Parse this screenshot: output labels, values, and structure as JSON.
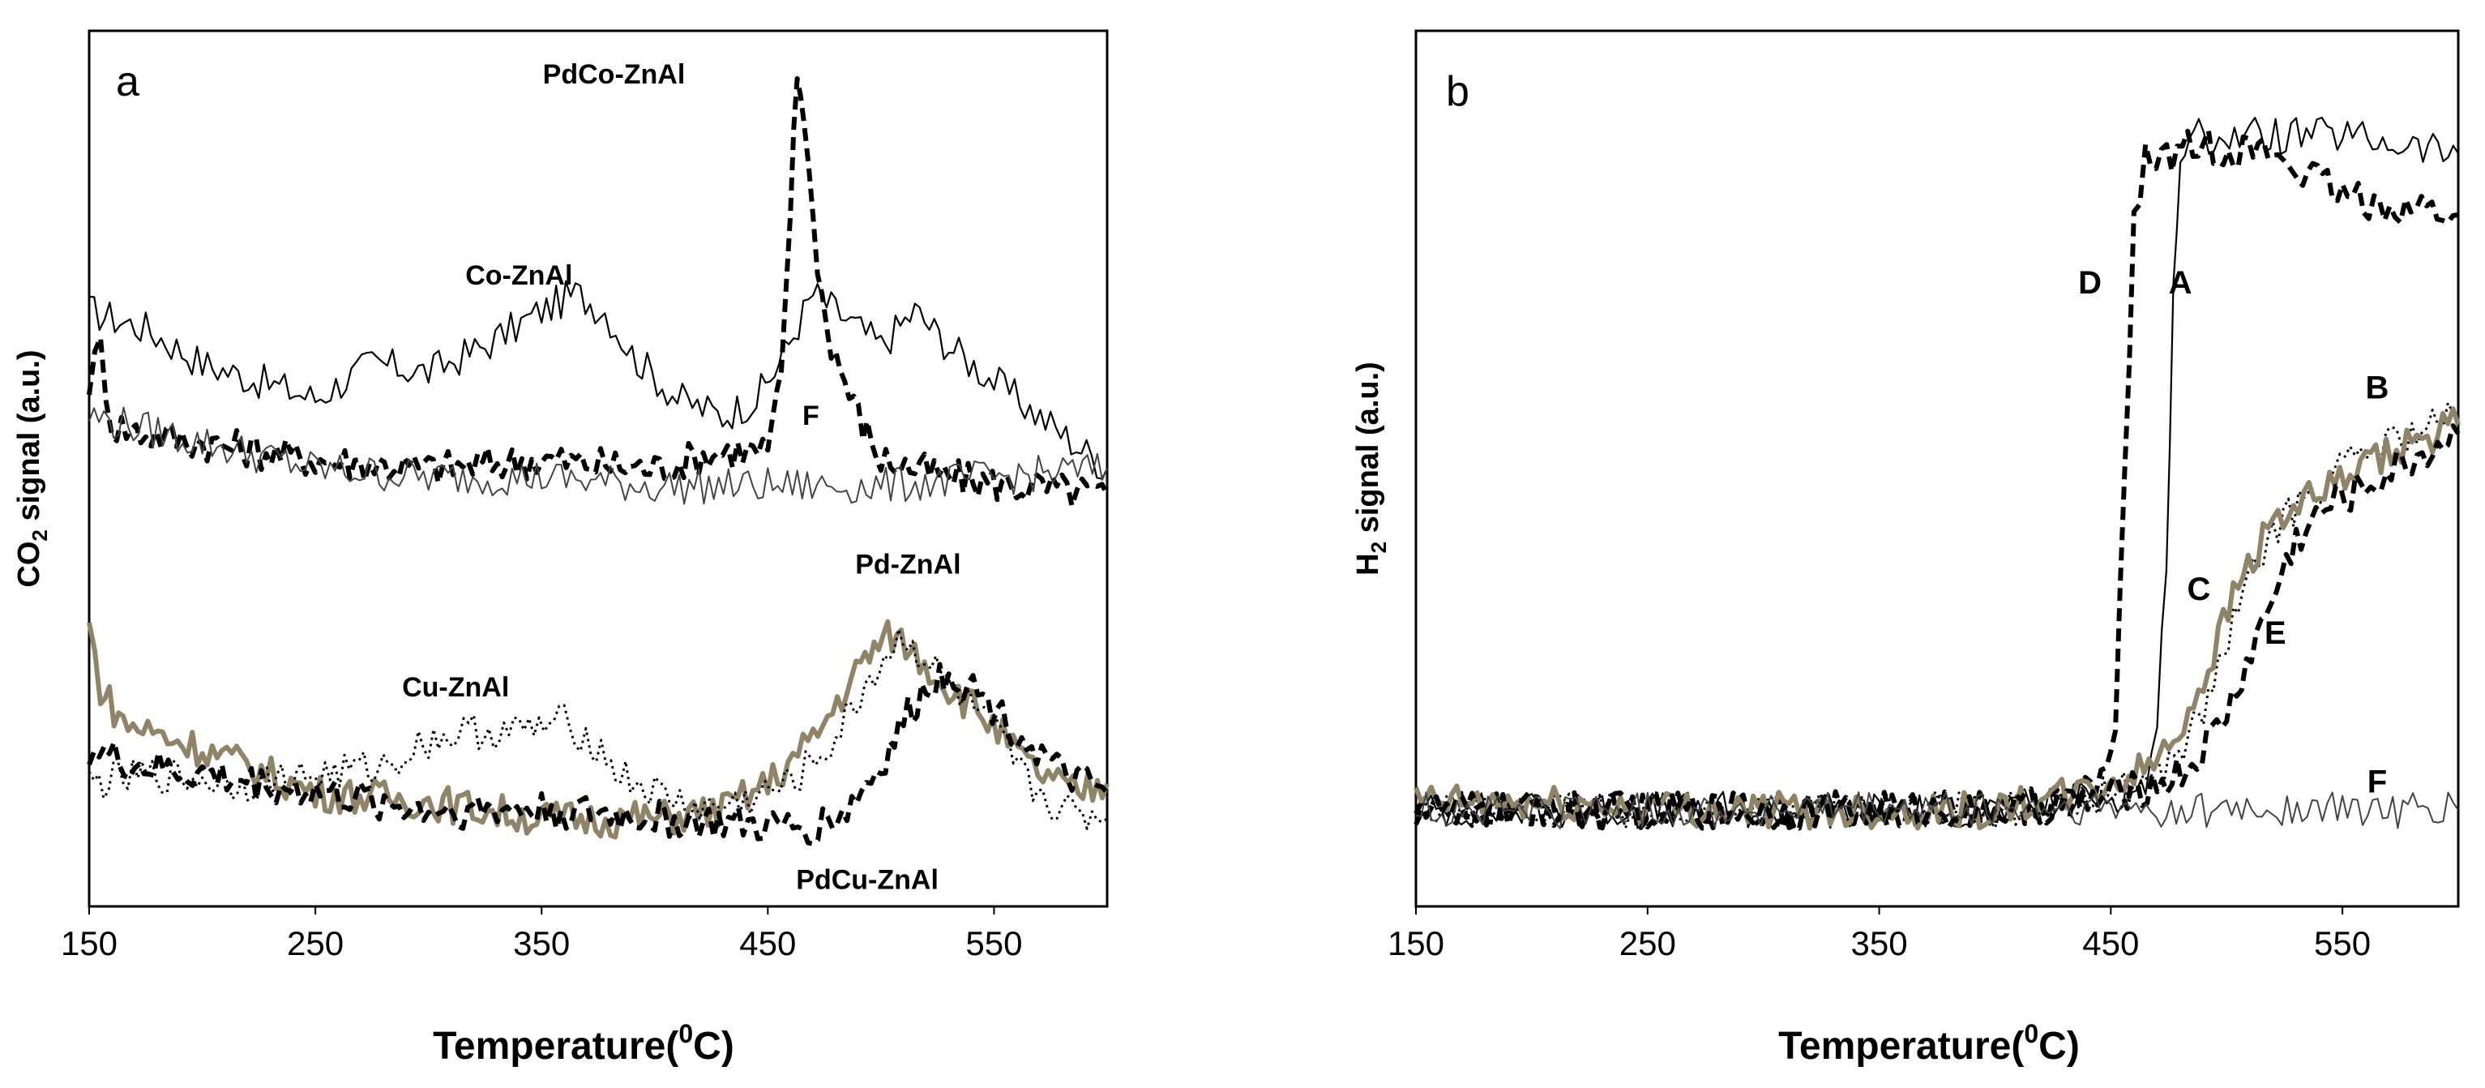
{
  "chart_data": [
    {
      "type": "line",
      "panel": "a",
      "xlabel": "Temperature",
      "xlabel_sup": "0",
      "xlabel_unit": "C)",
      "ylabel_pre": "CO",
      "ylabel_sub": "2",
      "ylabel_post": " signal (a.u.)",
      "xlim": [
        150,
        600
      ],
      "ylim": [
        0,
        100
      ],
      "xticks": [
        "150",
        "250",
        "350",
        "450",
        "550"
      ],
      "series": [
        {
          "name": "Co-ZnAl",
          "style": "thin",
          "color": "#000000",
          "points": [
            [
              150,
              68
            ],
            [
              175,
              66
            ],
            [
              200,
              62
            ],
            [
              225,
              60
            ],
            [
              250,
              58
            ],
            [
              275,
              62
            ],
            [
              300,
              61
            ],
            [
              325,
              64
            ],
            [
              350,
              68
            ],
            [
              365,
              70
            ],
            [
              378,
              68
            ],
            [
              390,
              63
            ],
            [
              410,
              58
            ],
            [
              430,
              56
            ],
            [
              445,
              58
            ],
            [
              455,
              62
            ],
            [
              470,
              70
            ],
            [
              480,
              68
            ],
            [
              500,
              64
            ],
            [
              515,
              68
            ],
            [
              530,
              64
            ],
            [
              550,
              60
            ],
            [
              575,
              55
            ],
            [
              600,
              50
            ]
          ]
        },
        {
          "name": "PdCo-ZnAl",
          "style": "dashed",
          "color": "#000000",
          "points": [
            [
              150,
              60
            ],
            [
              155,
              64
            ],
            [
              160,
              55
            ],
            [
              175,
              54
            ],
            [
              200,
              53
            ],
            [
              250,
              51
            ],
            [
              300,
              50
            ],
            [
              350,
              51
            ],
            [
              400,
              50
            ],
            [
              430,
              52
            ],
            [
              450,
              52
            ],
            [
              456,
              60
            ],
            [
              460,
              80
            ],
            [
              463,
              95
            ],
            [
              466,
              91
            ],
            [
              470,
              78
            ],
            [
              476,
              66
            ],
            [
              484,
              60
            ],
            [
              490,
              56
            ],
            [
              500,
              51
            ],
            [
              530,
              49
            ],
            [
              560,
              48
            ],
            [
              600,
              47
            ]
          ]
        },
        {
          "name": "F",
          "style": "thin-grey",
          "color": "#444444",
          "points": [
            [
              150,
              56
            ],
            [
              200,
              53
            ],
            [
              250,
              50
            ],
            [
              300,
              49
            ],
            [
              350,
              49
            ],
            [
              400,
              48
            ],
            [
              450,
              48
            ],
            [
              500,
              48
            ],
            [
              550,
              49
            ],
            [
              600,
              50
            ]
          ]
        },
        {
          "name": "Pd-ZnAl",
          "style": "olive-thick",
          "color": "#908468",
          "points": [
            [
              150,
              32
            ],
            [
              155,
              25
            ],
            [
              165,
              21
            ],
            [
              200,
              18
            ],
            [
              250,
              13
            ],
            [
              300,
              12
            ],
            [
              350,
              10
            ],
            [
              400,
              10
            ],
            [
              430,
              11
            ],
            [
              450,
              14
            ],
            [
              470,
              19
            ],
            [
              485,
              25
            ],
            [
              495,
              29
            ],
            [
              505,
              31
            ],
            [
              515,
              29
            ],
            [
              530,
              25
            ],
            [
              545,
              22
            ],
            [
              565,
              16
            ],
            [
              585,
              13
            ],
            [
              600,
              14
            ]
          ]
        },
        {
          "name": "Cu-ZnAl",
          "style": "dotted",
          "color": "#000000",
          "points": [
            [
              150,
              14
            ],
            [
              180,
              15
            ],
            [
              220,
              14
            ],
            [
              250,
              15
            ],
            [
              280,
              16
            ],
            [
              300,
              19
            ],
            [
              320,
              20
            ],
            [
              340,
              20
            ],
            [
              360,
              21
            ],
            [
              372,
              19
            ],
            [
              385,
              15
            ],
            [
              400,
              13
            ],
            [
              420,
              11
            ],
            [
              440,
              12
            ],
            [
              460,
              14
            ],
            [
              480,
              19
            ],
            [
              495,
              26
            ],
            [
              510,
              31
            ],
            [
              520,
              28
            ],
            [
              535,
              24
            ],
            [
              550,
              20
            ],
            [
              565,
              14
            ],
            [
              580,
              11
            ],
            [
              600,
              10
            ]
          ]
        },
        {
          "name": "PdCu-ZnAl",
          "style": "dashed",
          "color": "#000000",
          "points": [
            [
              150,
              18
            ],
            [
              170,
              16
            ],
            [
              200,
              15
            ],
            [
              250,
              13
            ],
            [
              300,
              11
            ],
            [
              350,
              11
            ],
            [
              400,
              10
            ],
            [
              450,
              9
            ],
            [
              470,
              9
            ],
            [
              485,
              11
            ],
            [
              500,
              16
            ],
            [
              510,
              21
            ],
            [
              520,
              25
            ],
            [
              530,
              27
            ],
            [
              545,
              24
            ],
            [
              560,
              20
            ],
            [
              580,
              15
            ],
            [
              600,
              13
            ]
          ]
        }
      ],
      "annotations": [
        {
          "text": "PdCo-ZnAl",
          "x": 382,
          "y": 94
        },
        {
          "text": "Co-ZnAl",
          "x": 340,
          "y": 71
        },
        {
          "text": "F",
          "x": 469,
          "y": 55
        },
        {
          "text": "Pd-ZnAl",
          "x": 512,
          "y": 38
        },
        {
          "text": "Cu-ZnAl",
          "x": 312,
          "y": 24
        },
        {
          "text": "PdCu-ZnAl",
          "x": 494,
          "y": 2
        }
      ]
    },
    {
      "type": "line",
      "panel": "b",
      "xlabel": "Temperature",
      "xlabel_sup": "0",
      "xlabel_unit": "C)",
      "ylabel_pre": "H",
      "ylabel_sub": "2",
      "ylabel_post": " signal (a.u.)",
      "xlim": [
        150,
        600
      ],
      "ylim": [
        0,
        100
      ],
      "xticks": [
        "150",
        "250",
        "350",
        "450",
        "550"
      ],
      "series": [
        {
          "name": "A",
          "style": "thin",
          "color": "#000000",
          "points": [
            [
              150,
              11
            ],
            [
              200,
              11
            ],
            [
              250,
              11
            ],
            [
              300,
              11
            ],
            [
              350,
              11
            ],
            [
              400,
              11
            ],
            [
              430,
              12
            ],
            [
              455,
              13
            ],
            [
              465,
              14
            ],
            [
              470,
              20
            ],
            [
              474,
              40
            ],
            [
              477,
              70
            ],
            [
              480,
              86
            ],
            [
              488,
              88
            ],
            [
              510,
              88
            ],
            [
              550,
              88
            ],
            [
              600,
              86
            ]
          ]
        },
        {
          "name": "D",
          "style": "dashed",
          "color": "#000000",
          "points": [
            [
              150,
              11
            ],
            [
              200,
              11
            ],
            [
              250,
              11
            ],
            [
              300,
              11
            ],
            [
              350,
              11
            ],
            [
              400,
              11
            ],
            [
              430,
              12
            ],
            [
              448,
              14
            ],
            [
              452,
              20
            ],
            [
              456,
              50
            ],
            [
              460,
              78
            ],
            [
              465,
              85
            ],
            [
              490,
              87
            ],
            [
              520,
              86
            ],
            [
              550,
              81
            ],
            [
              575,
              80
            ],
            [
              600,
              79
            ]
          ]
        },
        {
          "name": "B",
          "style": "dotted",
          "color": "#000000",
          "points": [
            [
              150,
              11
            ],
            [
              300,
              11
            ],
            [
              400,
              11
            ],
            [
              440,
              12
            ],
            [
              460,
              14
            ],
            [
              475,
              16
            ],
            [
              490,
              22
            ],
            [
              505,
              34
            ],
            [
              520,
              43
            ],
            [
              540,
              48
            ],
            [
              560,
              52
            ],
            [
              580,
              54
            ],
            [
              600,
              56
            ]
          ]
        },
        {
          "name": "C",
          "style": "olive-thick",
          "color": "#908468",
          "points": [
            [
              150,
              12
            ],
            [
              300,
              11
            ],
            [
              400,
              11
            ],
            [
              440,
              13
            ],
            [
              460,
              15
            ],
            [
              475,
              18
            ],
            [
              490,
              26
            ],
            [
              505,
              37
            ],
            [
              520,
              44
            ],
            [
              540,
              47
            ],
            [
              560,
              50
            ],
            [
              580,
              53
            ],
            [
              600,
              55
            ]
          ]
        },
        {
          "name": "E",
          "style": "dashed",
          "color": "#000000",
          "points": [
            [
              150,
              11
            ],
            [
              300,
              11
            ],
            [
              400,
              11
            ],
            [
              440,
              12
            ],
            [
              470,
              14
            ],
            [
              485,
              16
            ],
            [
              500,
              22
            ],
            [
              515,
              32
            ],
            [
              530,
              42
            ],
            [
              545,
              46
            ],
            [
              560,
              48
            ],
            [
              580,
              51
            ],
            [
              600,
              54
            ]
          ]
        },
        {
          "name": "F",
          "style": "thin-grey",
          "color": "#444444",
          "points": [
            [
              150,
              11
            ],
            [
              250,
              11
            ],
            [
              350,
              11
            ],
            [
              450,
              11
            ],
            [
              500,
              11
            ],
            [
              550,
              11
            ],
            [
              600,
              11
            ]
          ]
        }
      ],
      "annotations": [
        {
          "text": "D",
          "x": 441,
          "y": 70
        },
        {
          "text": "A",
          "x": 480,
          "y": 70
        },
        {
          "text": "B",
          "x": 565,
          "y": 58
        },
        {
          "text": "C",
          "x": 488,
          "y": 35
        },
        {
          "text": "E",
          "x": 521,
          "y": 30
        },
        {
          "text": "F",
          "x": 565,
          "y": 13
        }
      ]
    }
  ]
}
